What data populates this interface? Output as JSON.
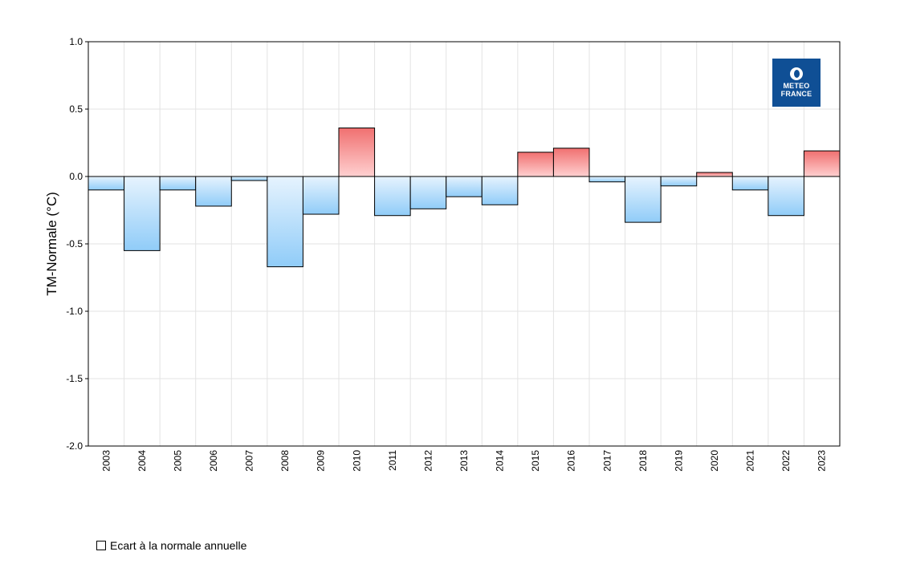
{
  "chart_data": {
    "type": "bar",
    "ylabel": "TM-Normale (°C)",
    "ylim": [
      -2.0,
      1.0
    ],
    "yticks": [
      "1.0",
      "0.5",
      "0.0",
      "-0.5",
      "-1.0",
      "-1.5",
      "-2.0"
    ],
    "ytick_values": [
      1.0,
      0.5,
      0.0,
      -0.5,
      -1.0,
      -1.5,
      -2.0
    ],
    "categories": [
      "2003",
      "2004",
      "2005",
      "2006",
      "2007",
      "2008",
      "2009",
      "2010",
      "2011",
      "2012",
      "2013",
      "2014",
      "2015",
      "2016",
      "2017",
      "2018",
      "2019",
      "2020",
      "2021",
      "2022",
      "2023"
    ],
    "values": [
      -0.1,
      -0.55,
      -0.1,
      -0.22,
      -0.03,
      -0.67,
      -0.28,
      0.36,
      -0.29,
      -0.24,
      -0.15,
      -0.21,
      0.18,
      0.21,
      -0.04,
      -0.34,
      -0.07,
      0.03,
      -0.1,
      -0.29,
      0.19
    ],
    "grid": true,
    "series": [
      {
        "name": "Ecart à la normale annuelle"
      }
    ],
    "legend_position": "bottom-left",
    "colors": {
      "positive": "#f07070",
      "negative": "#90ccf8"
    }
  },
  "legend": {
    "label": "Ecart à la normale annuelle"
  },
  "logo": {
    "line1": "METEO",
    "line2": "FRANCE"
  }
}
